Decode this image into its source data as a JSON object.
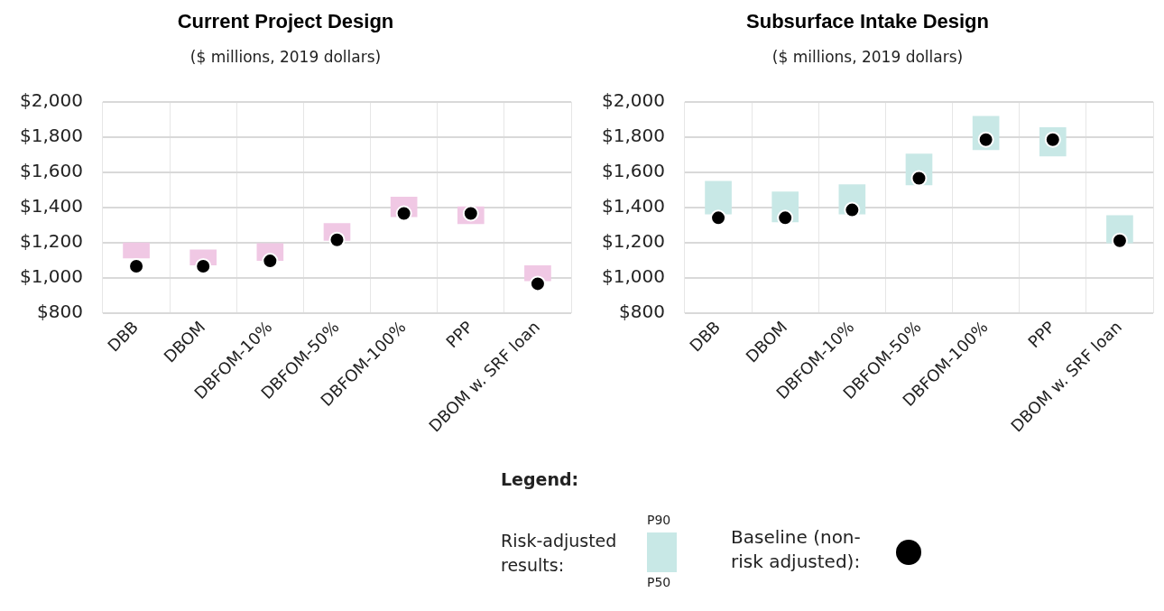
{
  "chart_data": [
    {
      "type": "bar",
      "title": "Current Project Design",
      "subtitle": "($ millions, 2019 dollars)",
      "categories": [
        "DBB",
        "DBOM",
        "DBFOM-10%",
        "DBFOM-50%",
        "DBFOM-100%",
        "PPP",
        "DBOM w. SRF loan"
      ],
      "series": [
        {
          "color": "#f0c8e4",
          "base": [
            1110,
            1070,
            1095,
            1210,
            1345,
            1305,
            980
          ],
          "values": [
            90,
            90,
            100,
            100,
            115,
            100,
            90
          ]
        },
        {
          "type": "scatter",
          "color": "#000000",
          "values": [
            1065,
            1065,
            1095,
            1215,
            1365,
            1365,
            965
          ]
        }
      ],
      "marker": "circle",
      "ylim": [
        800,
        2000
      ],
      "yticks": [
        {
          "value": 800,
          "label": "$800"
        },
        {
          "value": 1000,
          "label": "$1,000"
        },
        {
          "value": 1200,
          "label": "$1,200"
        },
        {
          "value": 1400,
          "label": "$1,400"
        },
        {
          "value": 1600,
          "label": "$1,600"
        },
        {
          "value": 1800,
          "label": "$1,800"
        },
        {
          "value": 2000,
          "label": "$2,000"
        }
      ],
      "grid": true
    },
    {
      "type": "bar",
      "title": "Subsurface Intake Design",
      "subtitle": "($ millions, 2019 dollars)",
      "categories": [
        "DBB",
        "DBOM",
        "DBFOM-10%",
        "DBFOM-50%",
        "DBFOM-100%",
        "PPP",
        "DBOM w. SRF loan"
      ],
      "series": [
        {
          "name": "Risk-adjusted results:",
          "color": "#c8e8e6",
          "base": [
            1360,
            1315,
            1360,
            1525,
            1725,
            1690,
            1195
          ],
          "values": [
            190,
            175,
            170,
            180,
            195,
            165,
            160
          ]
        },
        {
          "type": "scatter",
          "name": "Baseline (non-risk adjusted):",
          "color": "#000000",
          "values": [
            1340,
            1340,
            1385,
            1565,
            1785,
            1785,
            1210
          ]
        }
      ],
      "marker": "circle",
      "ylim": [
        800,
        2000
      ],
      "yticks": [
        {
          "value": 800,
          "label": "$800"
        },
        {
          "value": 1000,
          "label": "$1,000"
        },
        {
          "value": 1200,
          "label": "$1,200"
        },
        {
          "value": 1400,
          "label": "$1,400"
        },
        {
          "value": 1600,
          "label": "$1,600"
        },
        {
          "value": 1800,
          "label": "$1,800"
        },
        {
          "value": 2000,
          "label": "$2,000"
        }
      ],
      "grid": true,
      "legend": "bottom",
      "legend_title": "Legend:",
      "annotations": [
        "P90",
        "P50"
      ]
    }
  ]
}
